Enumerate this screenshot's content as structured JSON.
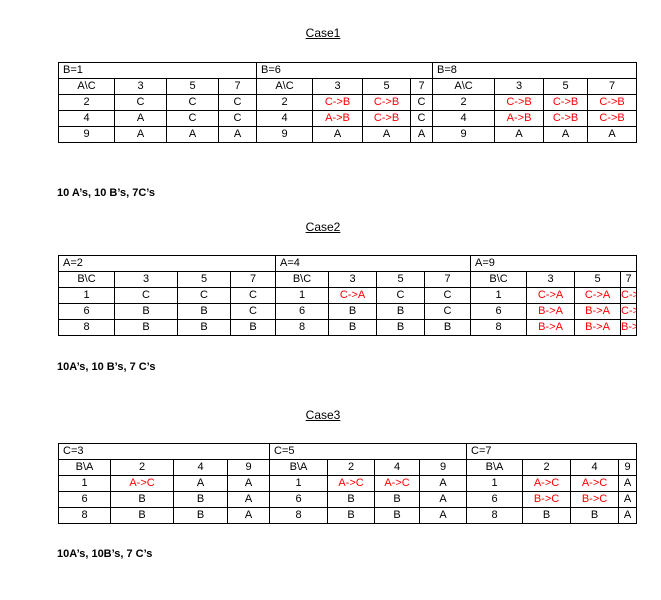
{
  "cases": [
    {
      "title": "Case1",
      "summary": "10 A’s, 10 B’s, 7C’s",
      "blocks": [
        {
          "header": "B=1",
          "corner": "A\\C",
          "col_labels": [
            "3",
            "5",
            "7"
          ],
          "rows": [
            {
              "label": "2",
              "cells": [
                "C",
                "C",
                "C"
              ]
            },
            {
              "label": "4",
              "cells": [
                "A",
                "C",
                "C"
              ]
            },
            {
              "label": "9",
              "cells": [
                "A",
                "A",
                "A"
              ]
            }
          ]
        },
        {
          "header": "B=6",
          "corner": "A\\C",
          "col_labels": [
            "3",
            "5",
            "7"
          ],
          "rows": [
            {
              "label": "2",
              "cells": [
                "C->B",
                "C->B",
                "C"
              ]
            },
            {
              "label": "4",
              "cells": [
                "A->B",
                "C->B",
                "C"
              ]
            },
            {
              "label": "9",
              "cells": [
                "A",
                "A",
                "A"
              ]
            }
          ]
        },
        {
          "header": "B=8",
          "corner": "A\\C",
          "col_labels": [
            "3",
            "5",
            "7"
          ],
          "rows": [
            {
              "label": "2",
              "cells": [
                "C->B",
                "C->B",
                "C->B"
              ]
            },
            {
              "label": "4",
              "cells": [
                "A->B",
                "C->B",
                "C->B"
              ]
            },
            {
              "label": "9",
              "cells": [
                "A",
                "A",
                "A"
              ]
            }
          ]
        }
      ]
    },
    {
      "title": "Case2",
      "summary": "10A’s, 10 B’s, 7 C’s",
      "blocks": [
        {
          "header": "A=2",
          "corner": "B\\C",
          "col_labels": [
            "3",
            "5",
            "7"
          ],
          "rows": [
            {
              "label": "1",
              "cells": [
                "C",
                "C",
                "C"
              ]
            },
            {
              "label": "6",
              "cells": [
                "B",
                "B",
                "C"
              ]
            },
            {
              "label": "8",
              "cells": [
                "B",
                "B",
                "B"
              ]
            }
          ]
        },
        {
          "header": "A=4",
          "corner": "B\\C",
          "col_labels": [
            "3",
            "5",
            "7"
          ],
          "rows": [
            {
              "label": "1",
              "cells": [
                "C->A",
                "C",
                "C"
              ]
            },
            {
              "label": "6",
              "cells": [
                "B",
                "B",
                "C"
              ]
            },
            {
              "label": "8",
              "cells": [
                "B",
                "B",
                "B"
              ]
            }
          ]
        },
        {
          "header": "A=9",
          "corner": "B\\C",
          "col_labels": [
            "3",
            "5",
            "7"
          ],
          "rows": [
            {
              "label": "1",
              "cells": [
                "C->A",
                "C->A",
                "C->A"
              ]
            },
            {
              "label": "6",
              "cells": [
                "B->A",
                "B->A",
                "C->A"
              ]
            },
            {
              "label": "8",
              "cells": [
                "B->A",
                "B->A",
                "B->A"
              ]
            }
          ]
        }
      ]
    },
    {
      "title": "Case3",
      "summary": "10A’s, 10B’s, 7 C’s",
      "blocks": [
        {
          "header": "C=3",
          "corner": "B\\A",
          "col_labels": [
            "2",
            "4",
            "9"
          ],
          "rows": [
            {
              "label": "1",
              "cells": [
                "A->C",
                "A",
                "A"
              ]
            },
            {
              "label": "6",
              "cells": [
                "B",
                "B",
                "A"
              ]
            },
            {
              "label": "8",
              "cells": [
                "B",
                "B",
                "A"
              ]
            }
          ]
        },
        {
          "header": "C=5",
          "corner": "B\\A",
          "col_labels": [
            "2",
            "4",
            "9"
          ],
          "rows": [
            {
              "label": "1",
              "cells": [
                "A->C",
                "A->C",
                "A"
              ]
            },
            {
              "label": "6",
              "cells": [
                "B",
                "B",
                "A"
              ]
            },
            {
              "label": "8",
              "cells": [
                "B",
                "B",
                "A"
              ]
            }
          ]
        },
        {
          "header": "C=7",
          "corner": "B\\A",
          "col_labels": [
            "2",
            "4",
            "9"
          ],
          "rows": [
            {
              "label": "1",
              "cells": [
                "A->C",
                "A->C",
                "A"
              ]
            },
            {
              "label": "6",
              "cells": [
                "B->C",
                "B->C",
                "A"
              ]
            },
            {
              "label": "8",
              "cells": [
                "B",
                "B",
                "A"
              ]
            }
          ]
        }
      ]
    }
  ],
  "highlight_color": "#ff0000"
}
